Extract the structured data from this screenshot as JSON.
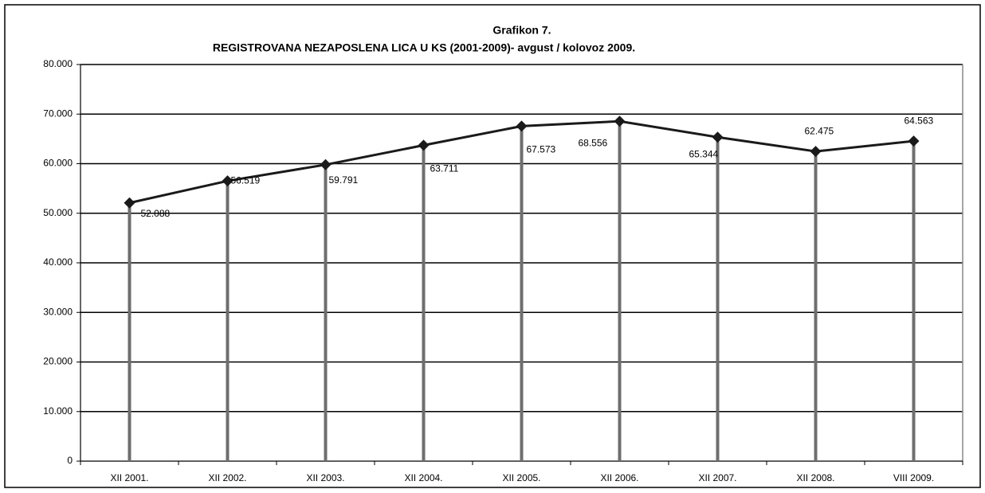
{
  "chart_data": {
    "type": "line",
    "title": "Grafikon 7.",
    "subtitle": "REGISTROVANA NEZAPOSLENA LICA U KS  (2001-2009)- avgust / kolovoz 2009.",
    "categories": [
      "XII 2001.",
      "XII 2002.",
      "XII 2003.",
      "XII 2004.",
      "XII 2005.",
      "XII  2006.",
      "XII 2007.",
      "XII 2008.",
      "VIII 2009."
    ],
    "series": [
      {
        "color": "#1a1a1a",
        "values": [
          52088,
          56519,
          59791,
          63711,
          67573,
          68556,
          65344,
          62475,
          64563
        ],
        "value_labels": [
          "52.088",
          "56.519",
          "59.791",
          "63.711",
          "67.573",
          "68.556",
          "65.344",
          "62.475",
          "64.563"
        ]
      }
    ],
    "drop_line_color": "#6e6e6e",
    "ylim": [
      0,
      80000
    ],
    "yticks": [
      0,
      {
        "value": 10000,
        "label": "10.000"
      },
      {
        "value": 20000,
        "label": "20.000"
      },
      {
        "value": 30000,
        "label": "30.000"
      },
      {
        "value": 40000,
        "label": "40.000"
      },
      {
        "value": 50000,
        "label": "50.000"
      },
      {
        "value": 60000,
        "label": "60.000"
      },
      {
        "value": 70000,
        "label": "70.000"
      },
      {
        "value": 80000,
        "label": "80.000"
      }
    ],
    "grid": true
  }
}
